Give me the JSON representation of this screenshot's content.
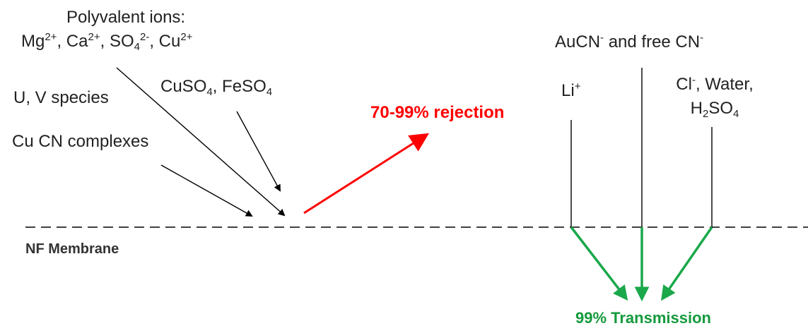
{
  "colors": {
    "text": "#222222",
    "rejection_arrow": "#ff0000",
    "transmission_arrow": "#1aa84a",
    "membrane_line": "#000000"
  },
  "labels": {
    "polyvalent_title": "Polyvalent ions:",
    "mg": "Mg",
    "mg_charge": "2+",
    "ca": "Ca",
    "ca_charge": "2+",
    "so4": "SO",
    "so4_sub": "4",
    "so4_charge": "2-",
    "cu": "Cu",
    "cu_charge": "2+",
    "sep": ", ",
    "u_v_species": "U, V species",
    "cuso4": "CuSO",
    "cuso4_sub": "4",
    "feso4": "FeSO",
    "feso4_sub": "4",
    "cu_cn_complexes": "Cu CN complexes",
    "rejection": "70-99% rejection",
    "li": "Li",
    "li_charge": "+",
    "aucn": "AuCN",
    "aucn_charge": "-",
    "and_free_cn": " and free CN",
    "free_cn_charge": "-",
    "cl": "Cl",
    "cl_charge": "-",
    "water": ", Water,",
    "h2so4_h": "H",
    "h2so4_2": "2",
    "h2so4_so": "SO",
    "h2so4_4": "4",
    "nf_membrane": "NF Membrane",
    "transmission": "99% Transmission"
  }
}
